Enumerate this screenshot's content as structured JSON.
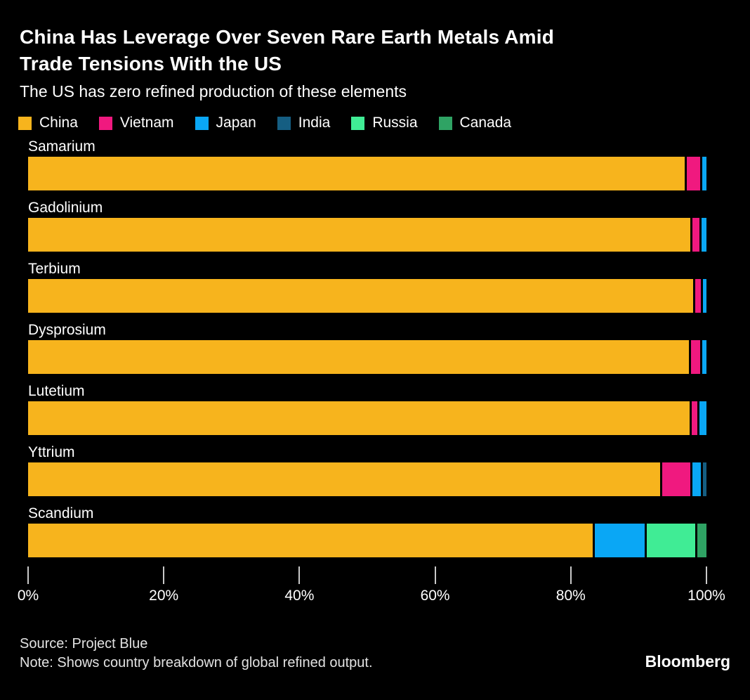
{
  "header": {
    "title": "China Has Leverage Over Seven Rare Earth Metals Amid Trade Tensions With the US",
    "title_line1": "China Has Leverage Over Seven Rare Earth Metals Amid",
    "title_line2": "Trade Tensions With the US",
    "subtitle": "The US has zero refined production of these elements"
  },
  "chart_data": {
    "type": "bar",
    "orientation": "horizontal",
    "stacked": true,
    "unit": "%",
    "title": "China Has Leverage Over Seven Rare Earth Metals Amid Trade Tensions With the US",
    "subtitle": "The US has zero refined production of these elements",
    "categories": [
      "Samarium",
      "Gadolinium",
      "Terbium",
      "Dysprosium",
      "Lutetium",
      "Yttrium",
      "Scandium"
    ],
    "series": [
      {
        "name": "China",
        "color": "#F7B41D",
        "values": [
          97.4,
          98.2,
          98.6,
          98.0,
          98.1,
          94.0,
          84.0
        ]
      },
      {
        "name": "Vietnam",
        "color": "#F0197F",
        "values": [
          2.0,
          1.1,
          0.9,
          1.4,
          0.9,
          4.2,
          0
        ]
      },
      {
        "name": "Japan",
        "color": "#0AA7F5",
        "values": [
          0.6,
          0.7,
          0.5,
          0.6,
          1.0,
          1.3,
          7.4
        ]
      },
      {
        "name": "India",
        "color": "#155E82",
        "values": [
          0,
          0,
          0,
          0,
          0,
          0.5,
          0
        ]
      },
      {
        "name": "Russia",
        "color": "#40EC95",
        "values": [
          0,
          0,
          0,
          0,
          0,
          0,
          7.2
        ]
      },
      {
        "name": "Canada",
        "color": "#2FA364",
        "values": [
          0,
          0,
          0,
          0,
          0,
          0,
          1.4
        ]
      }
    ],
    "xlim": [
      0,
      100
    ],
    "x_ticks": [
      "0%",
      "20%",
      "40%",
      "60%",
      "80%",
      "100%"
    ],
    "legend_position": "top",
    "grid": false
  },
  "footer": {
    "source": "Source: Project Blue",
    "note": "Note: Shows country breakdown of global refined output.",
    "brand": "Bloomberg"
  },
  "colors": {
    "background": "#000000",
    "text": "#FFFFFF",
    "muted_text": "#E2E2E2",
    "tick": "#C9C9C9"
  }
}
